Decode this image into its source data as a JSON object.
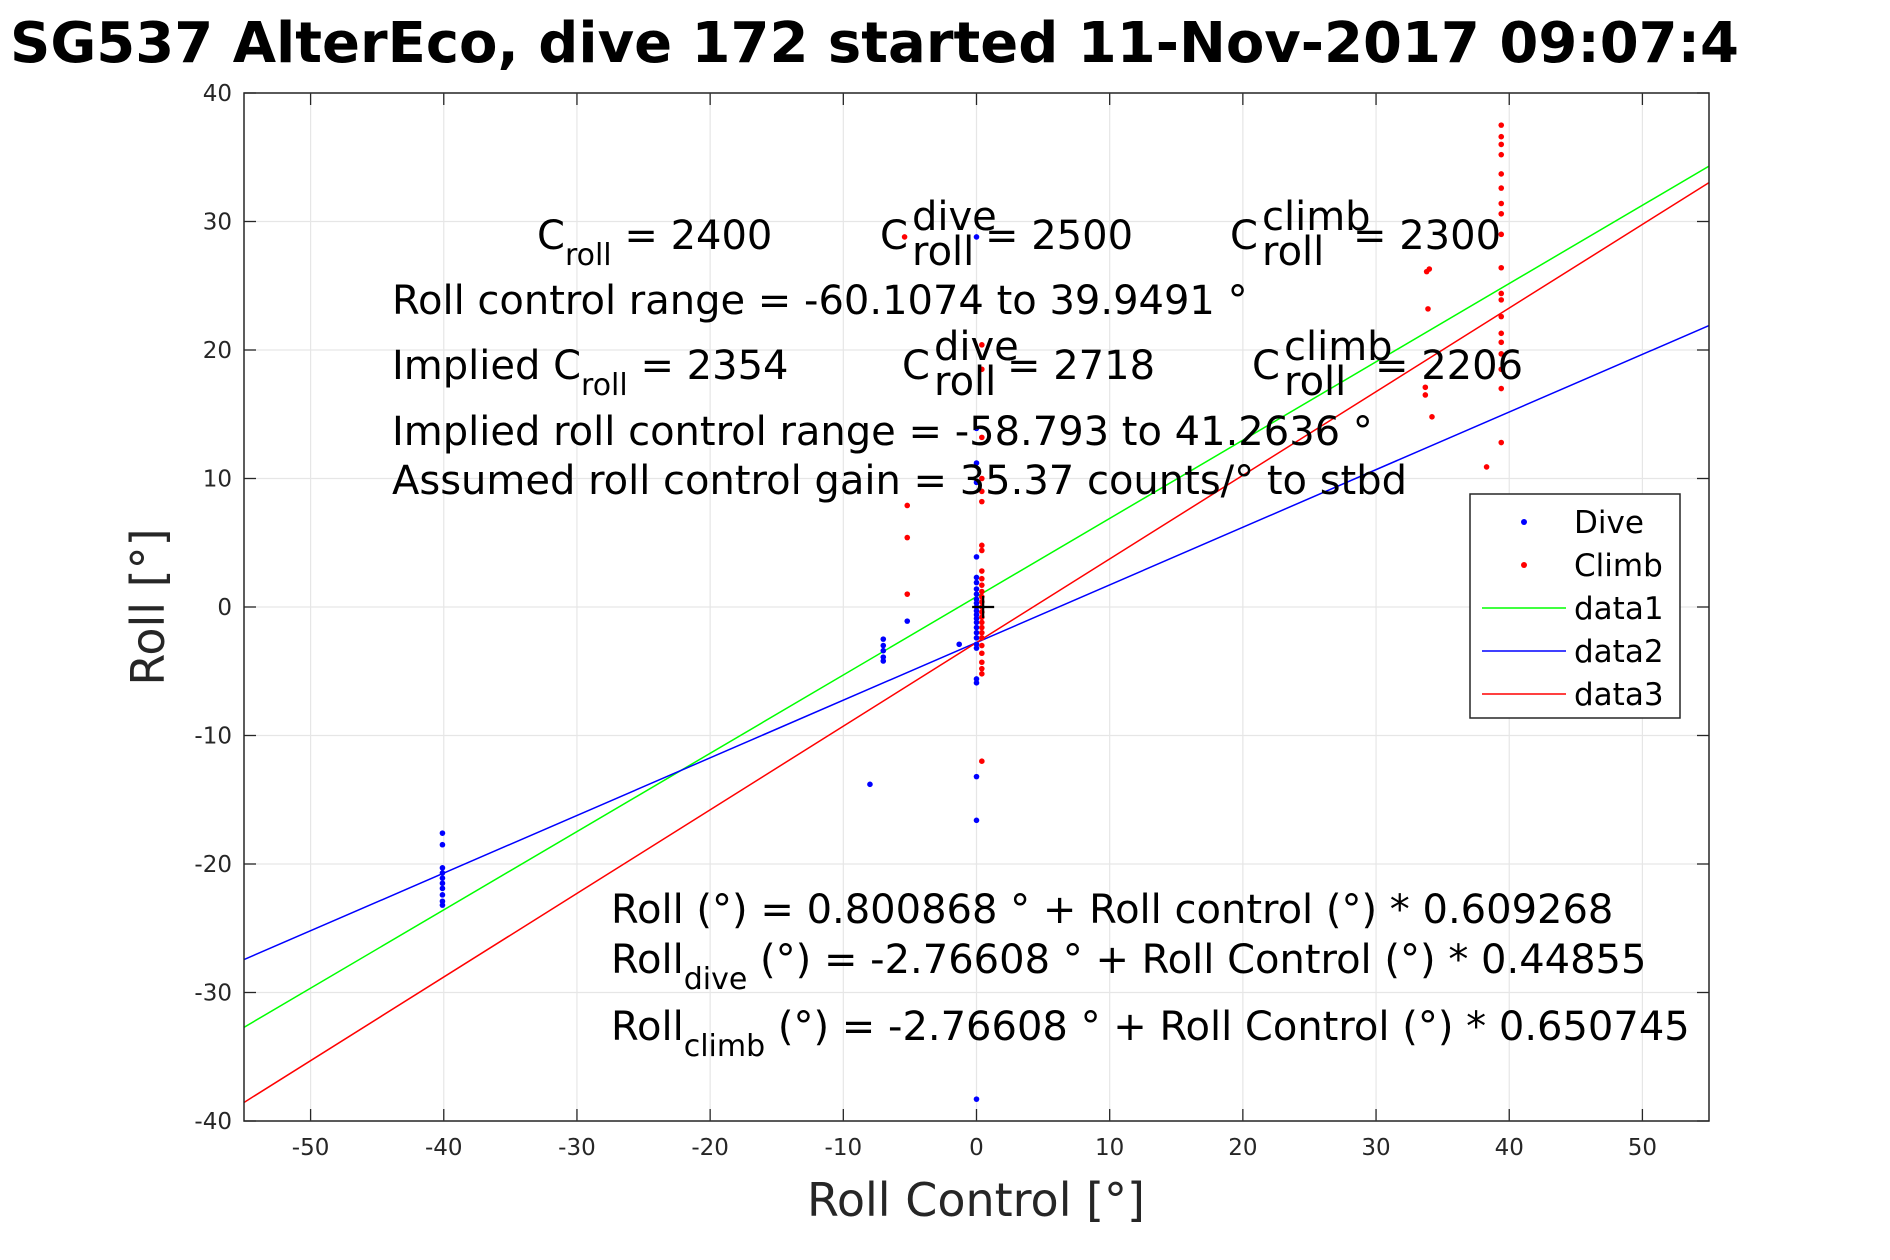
{
  "chart_data": {
    "type": "scatter",
    "title": "SG537 AlterEco, dive 172 started 11-Nov-2017 09:07:4",
    "xlabel": "Roll Control [°]",
    "ylabel": "Roll [°]",
    "xlim": [
      -55,
      55
    ],
    "ylim": [
      -40,
      40
    ],
    "xticks": [
      -50,
      -40,
      -30,
      -20,
      -10,
      0,
      10,
      20,
      30,
      40,
      50
    ],
    "yticks": [
      -40,
      -30,
      -20,
      -10,
      0,
      10,
      20,
      30,
      40
    ],
    "grid": true,
    "legend_position": "right",
    "series": [
      {
        "name": "Dive",
        "kind": "points",
        "color": "#0000ff",
        "points": [
          [
            -40.1,
            -17.6
          ],
          [
            -40.1,
            -18.5
          ],
          [
            -40.1,
            -20.3
          ],
          [
            -40.1,
            -20.7
          ],
          [
            -40.1,
            -21.1
          ],
          [
            -40.1,
            -21.5
          ],
          [
            -40.1,
            -21.9
          ],
          [
            -40.1,
            -22.4
          ],
          [
            -40.1,
            -22.9
          ],
          [
            -40.1,
            -23.2
          ],
          [
            -8.0,
            -13.8
          ],
          [
            -7.0,
            -2.5
          ],
          [
            -7.0,
            -3.0
          ],
          [
            -7.0,
            -3.4
          ],
          [
            -7.0,
            -3.9
          ],
          [
            -7.0,
            -4.2
          ],
          [
            -5.2,
            -1.1
          ],
          [
            -1.3,
            -2.9
          ],
          [
            0.0,
            28.8
          ],
          [
            0.0,
            13.9
          ],
          [
            0.0,
            11.2
          ],
          [
            0.0,
            9.7
          ],
          [
            0.0,
            3.9
          ],
          [
            0.0,
            2.3
          ],
          [
            0.0,
            1.9
          ],
          [
            0.0,
            1.4
          ],
          [
            0.0,
            1.0
          ],
          [
            0.0,
            0.6
          ],
          [
            0.0,
            0.3
          ],
          [
            0.0,
            0.0
          ],
          [
            0.0,
            -0.3
          ],
          [
            0.0,
            -0.6
          ],
          [
            0.0,
            -0.9
          ],
          [
            0.0,
            -1.2
          ],
          [
            0.0,
            -1.6
          ],
          [
            0.0,
            -2.0
          ],
          [
            0.0,
            -2.4
          ],
          [
            0.0,
            -2.9
          ],
          [
            0.0,
            -3.2
          ],
          [
            0.0,
            -5.6
          ],
          [
            0.0,
            -5.9
          ],
          [
            0.0,
            -13.2
          ],
          [
            0.0,
            -16.6
          ],
          [
            0.0,
            -38.3
          ]
        ]
      },
      {
        "name": "Climb",
        "kind": "points",
        "color": "#ff0000",
        "points": [
          [
            -5.4,
            28.8
          ],
          [
            -5.2,
            7.9
          ],
          [
            -5.2,
            5.4
          ],
          [
            -5.2,
            1.0
          ],
          [
            0.4,
            20.4
          ],
          [
            0.4,
            18.5
          ],
          [
            0.4,
            13.2
          ],
          [
            0.4,
            10.0
          ],
          [
            0.4,
            9.0
          ],
          [
            0.4,
            8.2
          ],
          [
            0.4,
            4.8
          ],
          [
            0.4,
            4.4
          ],
          [
            0.4,
            2.8
          ],
          [
            0.4,
            2.2
          ],
          [
            0.4,
            1.7
          ],
          [
            0.4,
            1.2
          ],
          [
            0.4,
            0.8
          ],
          [
            0.4,
            0.4
          ],
          [
            0.4,
            0.0
          ],
          [
            0.4,
            -0.4
          ],
          [
            0.4,
            -0.8
          ],
          [
            0.4,
            -1.2
          ],
          [
            0.4,
            -1.6
          ],
          [
            0.4,
            -2.0
          ],
          [
            0.4,
            -2.4
          ],
          [
            0.4,
            -3.0
          ],
          [
            0.4,
            -3.6
          ],
          [
            0.4,
            -4.3
          ],
          [
            0.4,
            -4.8
          ],
          [
            0.4,
            -5.2
          ],
          [
            0.4,
            -12.0
          ],
          [
            33.8,
            26.1
          ],
          [
            34.0,
            26.3
          ],
          [
            33.9,
            23.2
          ],
          [
            33.7,
            17.1
          ],
          [
            33.7,
            16.5
          ],
          [
            34.2,
            14.8
          ],
          [
            38.3,
            10.9
          ],
          [
            39.4,
            37.5
          ],
          [
            39.4,
            36.6
          ],
          [
            39.4,
            36.0
          ],
          [
            39.4,
            35.2
          ],
          [
            39.4,
            33.7
          ],
          [
            39.4,
            32.6
          ],
          [
            39.4,
            31.4
          ],
          [
            39.4,
            30.6
          ],
          [
            39.4,
            29.0
          ],
          [
            39.4,
            26.4
          ],
          [
            39.4,
            24.4
          ],
          [
            39.4,
            23.9
          ],
          [
            39.4,
            22.6
          ],
          [
            39.4,
            21.3
          ],
          [
            39.4,
            20.6
          ],
          [
            39.4,
            19.7
          ],
          [
            39.4,
            18.5
          ],
          [
            39.4,
            17.0
          ],
          [
            39.4,
            12.8
          ]
        ]
      },
      {
        "name": "data1",
        "kind": "line",
        "color": "#00ff00",
        "intercept": 0.800868,
        "slope": 0.609268
      },
      {
        "name": "data2",
        "kind": "line",
        "color": "#0000ff",
        "intercept": -2.76608,
        "slope": 0.44855
      },
      {
        "name": "data3",
        "kind": "line",
        "color": "#ff0000",
        "intercept": -2.76608,
        "slope": 0.650745
      }
    ],
    "marker": {
      "x": 0.5,
      "y": 0.0,
      "symbol": "+"
    },
    "legend": [
      "Dive",
      "Climb",
      "data1",
      "data2",
      "data3"
    ],
    "annotations": {
      "c_roll_base": "C",
      "c_roll_sub": "roll",
      "c_roll_val": " = 2400",
      "c_dive_base": "C",
      "c_dive_sup": "dive",
      "c_dive_sub": "roll",
      "c_dive_val": " = 2500",
      "c_climb_base": "C",
      "c_climb_sup": "climb",
      "c_climb_sub": "roll",
      "c_climb_val": " = 2300",
      "range": "Roll control range = -60.1074 to 39.9491 °",
      "implied_prefix": "Implied C",
      "implied_sub": "roll",
      "implied_val": " = 2354",
      "implied_dive_base": "C",
      "implied_dive_sup": "dive",
      "implied_dive_sub": "roll",
      "implied_dive_val": " = 2718",
      "implied_climb_base": "C",
      "implied_climb_sup": "climb",
      "implied_climb_sub": "roll",
      "implied_climb_val": " = 2206",
      "implied_range": "Implied roll control range = -58.793 to 41.2636 °",
      "gain": "Assumed roll control gain = 35.37 counts/° to stbd",
      "fit_all": "Roll (°) = 0.800868 ° + Roll control (°) * 0.609268",
      "fit_dive_base": "Roll",
      "fit_dive_sub": "dive",
      "fit_dive_rest": " (°) = -2.76608 ° + Roll Control (°) * 0.44855",
      "fit_climb_base": "Roll",
      "fit_climb_sub": "climb",
      "fit_climb_rest": " (°) = -2.76608 ° + Roll Control (°) * 0.650745"
    }
  }
}
